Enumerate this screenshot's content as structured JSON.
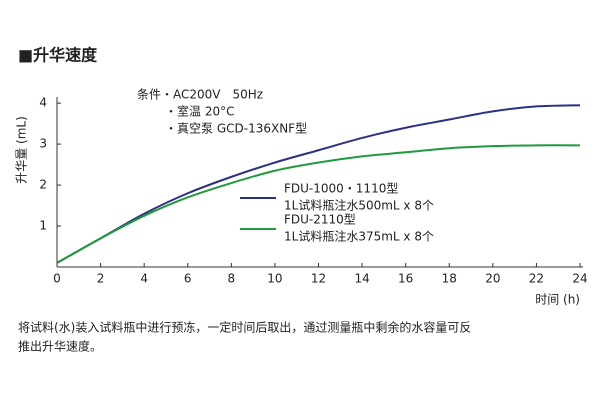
{
  "chart_data": {
    "type": "line",
    "title": "■升华速度",
    "ylabel": "升华量 (mL)",
    "xlabel": "时间 (h)",
    "conditions": [
      "条件・AC200V　50Hz",
      "・室温 20°C",
      "・真空泵 GCD-136XNF型"
    ],
    "x": [
      0,
      2,
      4,
      6,
      8,
      10,
      12,
      14,
      16,
      18,
      20,
      22,
      24
    ],
    "series": [
      {
        "name": "FDU-1000・1110型",
        "detail": "1L试料瓶注水500mL x 8个",
        "color": "#2b2f86",
        "values": [
          0.1,
          0.7,
          1.3,
          1.8,
          2.2,
          2.55,
          2.85,
          3.15,
          3.4,
          3.6,
          3.8,
          3.92,
          3.95
        ]
      },
      {
        "name": "FDU-2110型",
        "detail": "1L试料瓶注水375mL x 8个",
        "color": "#1f9a3c",
        "values": [
          0.1,
          0.7,
          1.25,
          1.7,
          2.05,
          2.35,
          2.55,
          2.7,
          2.8,
          2.9,
          2.95,
          2.97,
          2.97
        ]
      }
    ],
    "xlim": [
      0,
      24
    ],
    "ylim": [
      0,
      4.15
    ],
    "xticks": [
      0,
      2,
      4,
      6,
      8,
      10,
      12,
      14,
      16,
      18,
      20,
      22,
      24
    ],
    "yticks": [
      1,
      2,
      3,
      4
    ],
    "grid": false,
    "footnote": [
      "将试料(水)装入试料瓶中进行预冻，一定时间后取出，通过测量瓶中剩余的水容量可反",
      "推出升华速度。"
    ]
  }
}
